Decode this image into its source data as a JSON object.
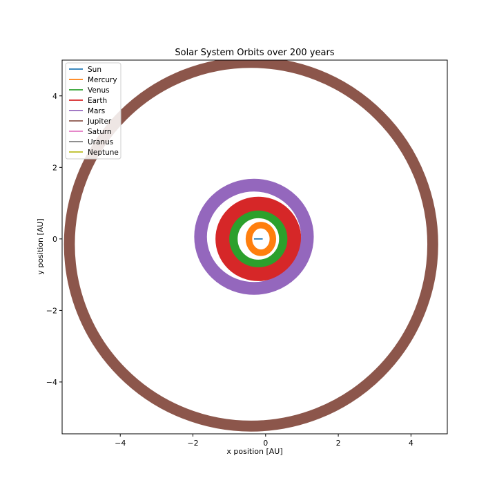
{
  "chart_data": {
    "type": "line",
    "title": "Solar System Orbits over 200 years",
    "xlabel": "x position [AU]",
    "ylabel": "y position [AU]",
    "xlim": [
      -5.6,
      5.0
    ],
    "ylim": [
      -5.45,
      5.0
    ],
    "xticks": [
      -4,
      -2,
      0,
      2,
      4
    ],
    "yticks": [
      -4,
      -2,
      0,
      2,
      4
    ],
    "grid": false,
    "legend_position": "top-left",
    "series": [
      {
        "name": "Sun",
        "color": "#1f77b4",
        "orbit": {
          "cx": -0.2,
          "cy": 0.0,
          "rx": 0.12,
          "ry": 0.0,
          "width_au": 0.03
        }
      },
      {
        "name": "Mercury",
        "color": "#ff7f0e",
        "orbit": {
          "cx": -0.13,
          "cy": 0.0,
          "rx": 0.33,
          "ry": 0.38,
          "width_au": 0.18
        }
      },
      {
        "name": "Venus",
        "color": "#2ca02c",
        "orbit": {
          "cx": -0.2,
          "cy": 0.0,
          "rx": 0.7,
          "ry": 0.7,
          "width_au": 0.26
        }
      },
      {
        "name": "Earth",
        "color": "#d62728",
        "orbit": {
          "cx": -0.2,
          "cy": 0.0,
          "rx": 0.99,
          "ry": 0.97,
          "width_au": 0.38
        }
      },
      {
        "name": "Mars",
        "color": "#9467bd",
        "orbit": {
          "cx": -0.32,
          "cy": 0.06,
          "rx": 1.47,
          "ry": 1.42,
          "width_au": 0.35
        }
      },
      {
        "name": "Jupiter",
        "color": "#8c564b",
        "orbit": {
          "cx": -0.4,
          "cy": -0.15,
          "rx": 5.0,
          "ry": 5.0,
          "width_au": 0.3
        }
      },
      {
        "name": "Saturn",
        "color": "#e377c2"
      },
      {
        "name": "Uranus",
        "color": "#7f7f7f"
      },
      {
        "name": "Neptune",
        "color": "#bcbd22"
      }
    ]
  }
}
